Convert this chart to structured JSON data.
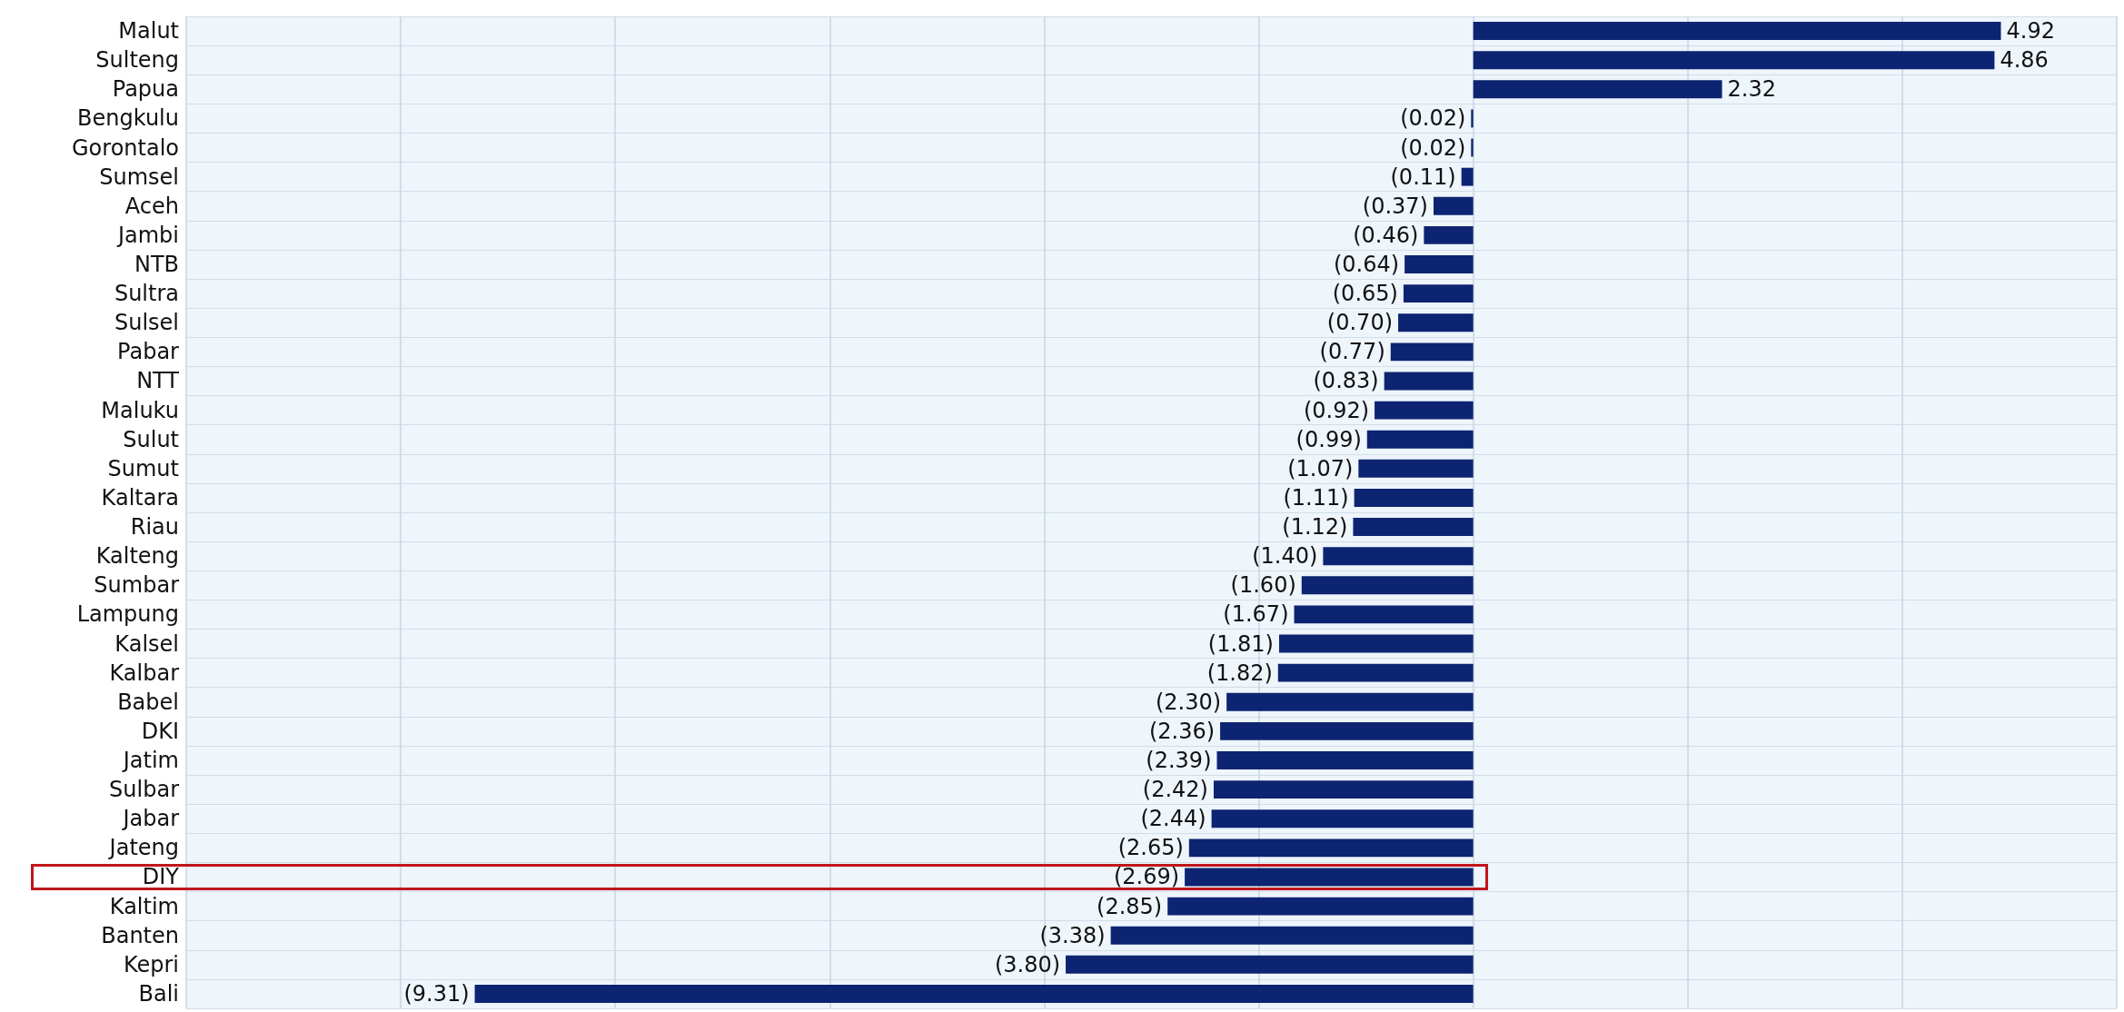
{
  "chart_data": {
    "type": "bar",
    "orientation": "horizontal",
    "categories": [
      "Malut",
      "Sulteng",
      "Papua",
      "Bengkulu",
      "Gorontalo",
      "Sumsel",
      "Aceh",
      "Jambi",
      "NTB",
      "Sultra",
      "Sulsel",
      "Pabar",
      "NTT",
      "Maluku",
      "Sulut",
      "Sumut",
      "Kaltara",
      "Riau",
      "Kalteng",
      "Sumbar",
      "Lampung",
      "Kalsel",
      "Kalbar",
      "Babel",
      "DKI",
      "Jatim",
      "Sulbar",
      "Jabar",
      "Jateng",
      "DIY",
      "Kaltim",
      "Banten",
      "Kepri",
      "Bali"
    ],
    "values": [
      4.92,
      4.86,
      2.32,
      -0.02,
      -0.02,
      -0.11,
      -0.37,
      -0.46,
      -0.64,
      -0.65,
      -0.7,
      -0.77,
      -0.83,
      -0.92,
      -0.99,
      -1.07,
      -1.11,
      -1.12,
      -1.4,
      -1.6,
      -1.67,
      -1.81,
      -1.82,
      -2.3,
      -2.36,
      -2.39,
      -2.42,
      -2.44,
      -2.65,
      -2.69,
      -2.85,
      -3.38,
      -3.8,
      -9.31
    ],
    "value_labels": [
      "4.92",
      "4.86",
      "2.32",
      "(0.02)",
      "(0.02)",
      "(0.11)",
      "(0.37)",
      "(0.46)",
      "(0.64)",
      "(0.65)",
      "(0.70)",
      "(0.77)",
      "(0.83)",
      "(0.92)",
      "(0.99)",
      "(1.07)",
      "(1.11)",
      "(1.12)",
      "(1.40)",
      "(1.60)",
      "(1.67)",
      "(1.81)",
      "(1.82)",
      "(2.30)",
      "(2.36)",
      "(2.39)",
      "(2.42)",
      "(2.44)",
      "(2.65)",
      "(2.69)",
      "(2.85)",
      "(3.38)",
      "(3.80)",
      "(9.31)"
    ],
    "color": "#0d2472",
    "xlim": [
      -12,
      6
    ],
    "xticks": [
      {
        "value": -12,
        "label": null
      },
      {
        "value": -10,
        "label": null
      },
      {
        "value": -8,
        "label": null
      },
      {
        "value": -6,
        "label": null
      },
      {
        "value": -4,
        "label": null
      },
      {
        "value": -2,
        "label": null
      },
      {
        "value": 0,
        "label": null
      },
      {
        "value": 2,
        "label": null
      },
      {
        "value": 4,
        "label": null
      },
      {
        "value": 6,
        "label": null
      }
    ],
    "tick_labels": "y",
    "grid": true
  }
}
